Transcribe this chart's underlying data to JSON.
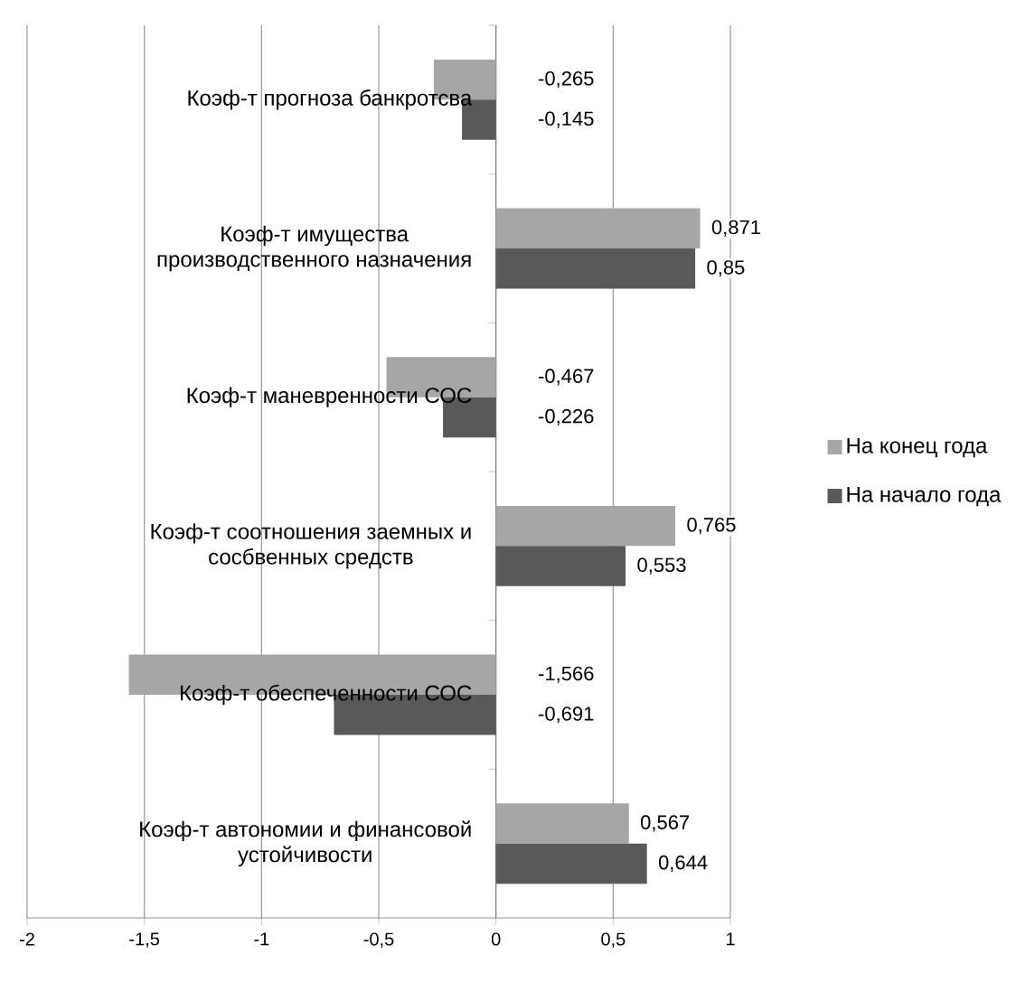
{
  "chart_data": {
    "type": "bar",
    "orientation": "horizontal",
    "categories": [
      "Коэф-т прогноза банкротсва",
      "Коэф-т имущества производственного назначения",
      "Коэф-т маневренности СОС",
      "Коэф-т соотношения заемных и сосбвенных средств",
      "Коэф-т обеспеченности СОС",
      "Коэф-т автономии и финансовой устойчивости"
    ],
    "series": [
      {
        "name": "На конец года",
        "color": "#a6a6a6",
        "values": [
          -0.265,
          0.871,
          -0.467,
          0.765,
          -1.566,
          0.567
        ],
        "value_labels": [
          "-0,265",
          "0,871",
          "-0,467",
          "0,765",
          "-1,566",
          "0,567"
        ]
      },
      {
        "name": "На начало года",
        "color": "#595959",
        "values": [
          -0.145,
          0.85,
          -0.226,
          0.553,
          -0.691,
          0.644
        ],
        "value_labels": [
          "-0,145",
          "0,85",
          "-0,226",
          "0,553",
          "-0,691",
          "0,644"
        ]
      }
    ],
    "xlim": [
      -2,
      1
    ],
    "xticks": [
      -2,
      {
        "value": -1.5,
        "label": "-1,5"
      },
      -1,
      {
        "value": -0.5,
        "label": "-0,5"
      },
      0,
      {
        "value": 0.5,
        "label": "0,5"
      },
      1
    ],
    "grid": "x",
    "legend": "right"
  }
}
